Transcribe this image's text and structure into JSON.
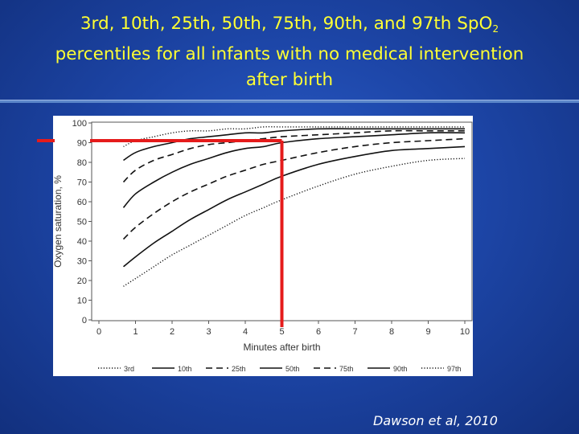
{
  "slide": {
    "title_line1_pre": "3rd, 10th, 25th, 50th, 75th, 90th, and 97th SpO",
    "title_line1_sub": "2",
    "title_line2": "percentiles for all infants with no medical intervention",
    "title_line3": "after birth",
    "citation": "Dawson et al, 2010",
    "colors": {
      "title": "#ffff33",
      "highlight": "#e51b1b",
      "background": "#1d46a8"
    }
  },
  "chart_data": {
    "type": "line",
    "title": "",
    "xlabel": "Minutes after birth",
    "ylabel": "Oxygen saturation, %",
    "xlim": [
      0,
      10
    ],
    "ylim": [
      0,
      100
    ],
    "x_ticks": [
      "0",
      "1",
      "2",
      "3",
      "4",
      "5",
      "6",
      "7",
      "8",
      "9",
      "10"
    ],
    "y_ticks": [
      "0",
      "10",
      "20",
      "30",
      "40",
      "50",
      "60",
      "70",
      "80",
      "90",
      "100"
    ],
    "grid": false,
    "legend_position": "bottom",
    "x": [
      0.67,
      1,
      1.5,
      2,
      2.5,
      3,
      3.5,
      4,
      4.5,
      5,
      6,
      7,
      8,
      9,
      10
    ],
    "series": [
      {
        "name": "3rd",
        "style": "dotted",
        "values": [
          17,
          21,
          27,
          33,
          38,
          43,
          48,
          53,
          57,
          61,
          68,
          74,
          78,
          81,
          82
        ]
      },
      {
        "name": "10th",
        "style": "solid",
        "values": [
          27,
          32,
          39,
          45,
          51,
          56,
          61,
          65,
          69,
          73,
          79,
          83,
          86,
          87,
          88
        ]
      },
      {
        "name": "25th",
        "style": "dashed",
        "values": [
          41,
          47,
          54,
          60,
          65,
          69,
          73,
          76,
          79,
          81,
          85,
          88,
          90,
          91,
          92
        ]
      },
      {
        "name": "50th",
        "style": "solid",
        "values": [
          57,
          64,
          70,
          75,
          79,
          82,
          85,
          87,
          88,
          90,
          92,
          93,
          94,
          95,
          95
        ]
      },
      {
        "name": "75th",
        "style": "dashed",
        "values": [
          70,
          76,
          81,
          84,
          87,
          89,
          90,
          91,
          92,
          93,
          94,
          95,
          96,
          96,
          96
        ]
      },
      {
        "name": "90th",
        "style": "solid",
        "values": [
          81,
          85,
          88,
          90,
          92,
          93,
          94,
          95,
          95,
          96,
          97,
          97,
          97,
          97,
          97
        ]
      },
      {
        "name": "97th",
        "style": "dotted",
        "values": [
          88,
          91,
          93,
          95,
          96,
          96,
          97,
          97,
          98,
          98,
          98,
          98,
          98,
          98,
          98
        ]
      }
    ],
    "annotations": [
      {
        "type": "reference-lines",
        "at_x": 5,
        "at_y": 91,
        "color": "#e51b1b"
      }
    ]
  }
}
